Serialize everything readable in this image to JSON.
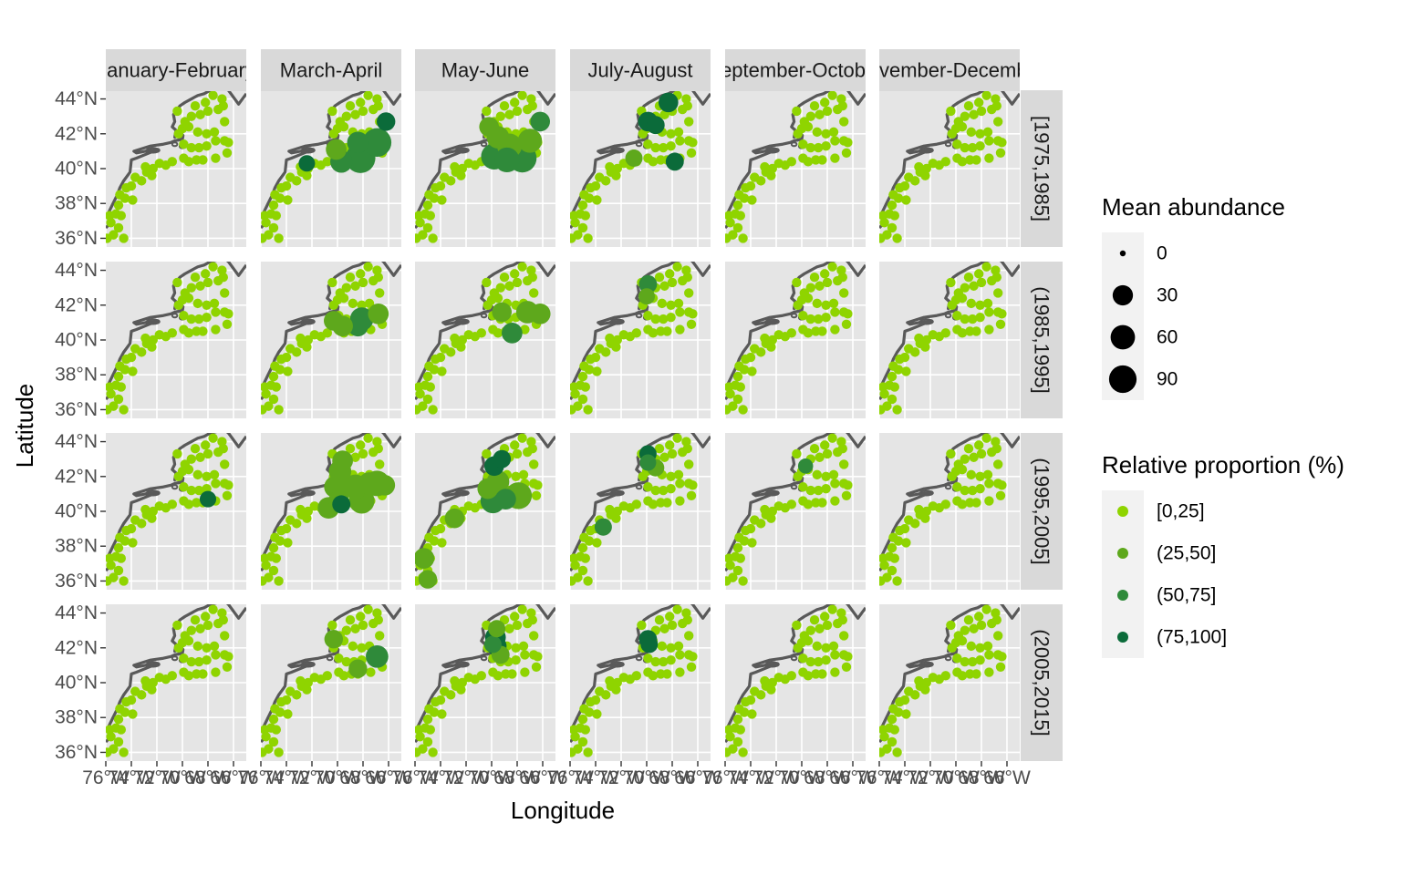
{
  "chart_data": {
    "type": "scatter",
    "xlabel": "Longitude",
    "ylabel": "Latitude",
    "xlim": [
      -76,
      -65
    ],
    "ylim": [
      35.5,
      44.5
    ],
    "x_ticks": [
      -76,
      -74,
      -72,
      -70,
      -68,
      -66
    ],
    "y_ticks": [
      36,
      38,
      40,
      42,
      44
    ],
    "x_tick_labels": [
      "76°W",
      "74°W",
      "72°W",
      "70°W",
      "68°W",
      "66°W"
    ],
    "y_tick_labels": [
      "36°N",
      "38°N",
      "40°N",
      "42°N",
      "44°N"
    ],
    "columns": [
      "January-February",
      "March-April",
      "May-June",
      "July-August",
      "September-October",
      "November-December"
    ],
    "rows": [
      "[1975,1985]",
      "(1985,1995]",
      "(1995,2005]",
      "(2005,2015]"
    ],
    "grid": true,
    "legend_position": "right",
    "legends": {
      "size": {
        "title": "Mean abundance",
        "labels": [
          "0",
          "30",
          "60",
          "90"
        ],
        "values": [
          0,
          30,
          60,
          90
        ]
      },
      "color": {
        "title": "Relative proportion (%)",
        "labels": [
          "[0,25]",
          "(25,50]",
          "(50,75]",
          "(75,100]"
        ],
        "colors": [
          "#8fd400",
          "#5ea81c",
          "#2f8a3a",
          "#0b6b3a"
        ]
      }
    },
    "base_stations": [
      [
        -75.9,
        36.0
      ],
      [
        -75.4,
        36.2
      ],
      [
        -75.0,
        36.6
      ],
      [
        -74.6,
        36.0
      ],
      [
        -75.6,
        36.9
      ],
      [
        -75.7,
        37.3
      ],
      [
        -75.2,
        37.4
      ],
      [
        -74.8,
        37.3
      ],
      [
        -75.0,
        37.9
      ],
      [
        -74.5,
        38.3
      ],
      [
        -74.9,
        38.5
      ],
      [
        -74.4,
        38.9
      ],
      [
        -74.0,
        39.0
      ],
      [
        -73.7,
        39.5
      ],
      [
        -73.2,
        39.3
      ],
      [
        -72.8,
        39.8
      ],
      [
        -72.4,
        39.6
      ],
      [
        -72.3,
        40.0
      ],
      [
        -71.8,
        40.3
      ],
      [
        -71.3,
        40.2
      ],
      [
        -70.8,
        40.4
      ],
      [
        -69.9,
        40.6
      ],
      [
        -69.5,
        40.4
      ],
      [
        -68.9,
        40.5
      ],
      [
        -68.4,
        40.5
      ],
      [
        -69.9,
        41.4
      ],
      [
        -69.3,
        41.2
      ],
      [
        -68.7,
        41.2
      ],
      [
        -68.1,
        41.3
      ],
      [
        -67.4,
        41.6
      ],
      [
        -66.7,
        41.6
      ],
      [
        -66.4,
        41.5
      ],
      [
        -70.3,
        42.0
      ],
      [
        -70.0,
        42.3
      ],
      [
        -69.5,
        42.4
      ],
      [
        -68.8,
        42.1
      ],
      [
        -68.1,
        42.0
      ],
      [
        -67.5,
        42.1
      ],
      [
        -66.7,
        42.7
      ],
      [
        -69.8,
        42.7
      ],
      [
        -69.3,
        43.0
      ],
      [
        -68.6,
        43.1
      ],
      [
        -68.0,
        43.3
      ],
      [
        -67.2,
        43.4
      ],
      [
        -66.8,
        43.6
      ],
      [
        -69.0,
        43.6
      ],
      [
        -68.2,
        43.8
      ],
      [
        -67.6,
        44.2
      ],
      [
        -66.9,
        44.0
      ],
      [
        -70.4,
        43.3
      ],
      [
        -67.4,
        40.6
      ],
      [
        -66.5,
        40.9
      ],
      [
        -72.9,
        40.1
      ],
      [
        -73.9,
        38.2
      ]
    ],
    "highlights": [
      {
        "row": 0,
        "col": 1,
        "points": [
          [
            -72.4,
            40.3,
            12,
            3
          ],
          [
            -69.7,
            40.4,
            38,
            2
          ],
          [
            -68.2,
            40.6,
            95,
            2
          ],
          [
            -66.9,
            41.5,
            85,
            2
          ],
          [
            -68.4,
            41.5,
            35,
            2
          ],
          [
            -66.2,
            42.7,
            20,
            3
          ],
          [
            -70.1,
            41.1,
            30,
            1
          ]
        ]
      },
      {
        "row": 0,
        "col": 2,
        "points": [
          [
            -69.8,
            40.7,
            65,
            2
          ],
          [
            -68.6,
            41.3,
            55,
            1
          ],
          [
            -68.8,
            40.5,
            55,
            2
          ],
          [
            -67.6,
            40.6,
            85,
            2
          ],
          [
            -67.0,
            41.6,
            50,
            1
          ],
          [
            -69.5,
            41.8,
            40,
            1
          ],
          [
            -66.2,
            42.7,
            25,
            2
          ],
          [
            -70.2,
            42.4,
            25,
            1
          ]
        ]
      },
      {
        "row": 0,
        "col": 3,
        "points": [
          [
            -69.9,
            42.7,
            25,
            3
          ],
          [
            -68.3,
            43.8,
            25,
            3
          ],
          [
            -67.8,
            40.4,
            18,
            3
          ],
          [
            -69.3,
            42.5,
            18,
            3
          ],
          [
            -71.0,
            40.6,
            15,
            1
          ]
        ]
      },
      {
        "row": 1,
        "col": 1,
        "points": [
          [
            -68.1,
            41.2,
            45,
            2
          ],
          [
            -68.4,
            40.8,
            30,
            2
          ],
          [
            -66.8,
            41.5,
            30,
            1
          ],
          [
            -69.6,
            40.8,
            30,
            1
          ],
          [
            -70.3,
            41.1,
            25,
            1
          ]
        ]
      },
      {
        "row": 1,
        "col": 2,
        "points": [
          [
            -68.4,
            40.4,
            30,
            2
          ],
          [
            -67.2,
            41.6,
            40,
            1
          ],
          [
            -66.2,
            41.5,
            30,
            1
          ],
          [
            -69.2,
            41.6,
            25,
            1
          ]
        ]
      },
      {
        "row": 1,
        "col": 3,
        "points": [
          [
            -69.9,
            43.2,
            18,
            2
          ],
          [
            -70.0,
            42.5,
            12,
            1
          ]
        ]
      },
      {
        "row": 2,
        "col": 0,
        "points": [
          [
            -68.0,
            40.7,
            12,
            3
          ]
        ]
      },
      {
        "row": 2,
        "col": 1,
        "points": [
          [
            -69.8,
            42.3,
            40,
            1
          ],
          [
            -69.6,
            42.9,
            30,
            1
          ],
          [
            -70.2,
            41.4,
            35,
            1
          ],
          [
            -70.7,
            40.2,
            35,
            1
          ],
          [
            -69.9,
            40.6,
            30,
            1
          ],
          [
            -69.7,
            40.4,
            18,
            3
          ],
          [
            -68.6,
            41.4,
            55,
            1
          ],
          [
            -68.1,
            40.6,
            60,
            1
          ],
          [
            -66.9,
            41.6,
            60,
            1
          ],
          [
            -67.5,
            41.6,
            40,
            1
          ],
          [
            -66.3,
            41.5,
            30,
            1
          ]
        ]
      },
      {
        "row": 2,
        "col": 2,
        "points": [
          [
            -69.8,
            42.6,
            25,
            3
          ],
          [
            -69.2,
            43.0,
            18,
            3
          ],
          [
            -69.9,
            40.6,
            55,
            2
          ],
          [
            -68.9,
            40.7,
            30,
            2
          ],
          [
            -67.9,
            40.9,
            70,
            1
          ],
          [
            -69.5,
            41.7,
            40,
            1
          ],
          [
            -70.3,
            41.3,
            30,
            1
          ],
          [
            -72.9,
            39.6,
            25,
            1
          ],
          [
            -75.3,
            37.3,
            30,
            1
          ],
          [
            -75.0,
            36.1,
            20,
            1
          ]
        ]
      },
      {
        "row": 2,
        "col": 3,
        "points": [
          [
            -69.9,
            43.3,
            15,
            3
          ],
          [
            -69.9,
            42.8,
            12,
            2
          ],
          [
            -69.3,
            42.5,
            15,
            1
          ],
          [
            -73.4,
            39.1,
            15,
            2
          ]
        ]
      },
      {
        "row": 2,
        "col": 4,
        "points": [
          [
            -69.7,
            42.6,
            8,
            2
          ]
        ]
      },
      {
        "row": 3,
        "col": 1,
        "points": [
          [
            -66.9,
            41.5,
            40,
            2
          ],
          [
            -68.4,
            40.8,
            20,
            1
          ],
          [
            -70.3,
            42.5,
            20,
            1
          ]
        ]
      },
      {
        "row": 3,
        "col": 2,
        "points": [
          [
            -69.7,
            42.6,
            30,
            3
          ],
          [
            -69.6,
            42.1,
            25,
            3
          ],
          [
            -69.9,
            42.2,
            15,
            2
          ],
          [
            -69.3,
            41.6,
            18,
            1
          ],
          [
            -69.6,
            43.1,
            15,
            1
          ]
        ]
      },
      {
        "row": 3,
        "col": 3,
        "points": [
          [
            -69.9,
            42.5,
            18,
            3
          ],
          [
            -69.8,
            42.2,
            15,
            3
          ]
        ]
      }
    ]
  }
}
